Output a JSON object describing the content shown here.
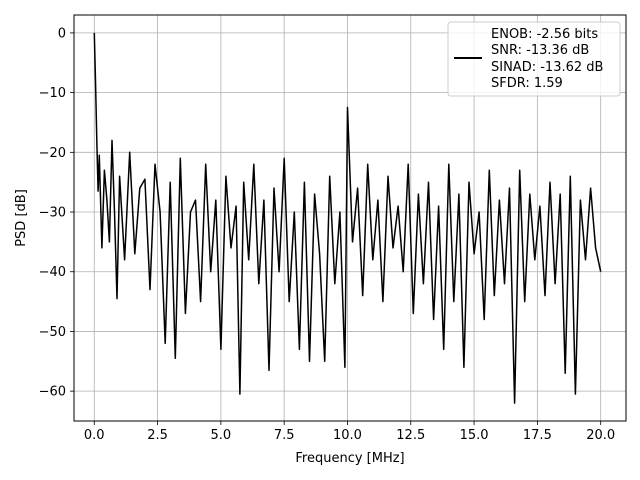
{
  "chart_data": {
    "type": "line",
    "title": "",
    "xlabel": "Frequency [MHz]",
    "ylabel": "PSD [dB]",
    "xlim": [
      -0.8,
      21.0
    ],
    "ylim": [
      -65,
      3
    ],
    "xticks": [
      0.0,
      2.5,
      5.0,
      7.5,
      10.0,
      12.5,
      15.0,
      17.5,
      20.0
    ],
    "xtick_labels": [
      "0.0",
      "2.5",
      "5.0",
      "7.5",
      "10.0",
      "12.5",
      "15.0",
      "17.5",
      "20.0"
    ],
    "yticks": [
      0,
      -10,
      -20,
      -30,
      -40,
      -50,
      -60
    ],
    "ytick_labels": [
      "0",
      "−10",
      "−20",
      "−30",
      "−40",
      "−50",
      "−60"
    ],
    "grid": true,
    "legend_position": "top-right",
    "legend": [
      "ENOB: -2.56 bits",
      "SNR: -13.36 dB",
      "SINAD: -13.62 dB",
      "SFDR: 1.59"
    ],
    "series": [
      {
        "color": "#000000",
        "x": [
          0.0,
          0.05,
          0.1,
          0.15,
          0.2,
          0.3,
          0.4,
          0.5,
          0.6,
          0.7,
          0.8,
          0.9,
          1.0,
          1.2,
          1.4,
          1.6,
          1.8,
          2.0,
          2.2,
          2.4,
          2.6,
          2.8,
          3.0,
          3.2,
          3.4,
          3.6,
          3.8,
          4.0,
          4.2,
          4.4,
          4.6,
          4.8,
          5.0,
          5.2,
          5.4,
          5.6,
          5.75,
          5.9,
          6.1,
          6.3,
          6.5,
          6.7,
          6.9,
          7.1,
          7.3,
          7.5,
          7.7,
          7.9,
          8.1,
          8.3,
          8.5,
          8.7,
          8.9,
          9.1,
          9.3,
          9.5,
          9.7,
          9.9,
          10.0,
          10.2,
          10.4,
          10.6,
          10.8,
          11.0,
          11.2,
          11.4,
          11.6,
          11.8,
          12.0,
          12.2,
          12.4,
          12.6,
          12.8,
          13.0,
          13.2,
          13.4,
          13.6,
          13.8,
          14.0,
          14.2,
          14.4,
          14.6,
          14.8,
          15.0,
          15.2,
          15.4,
          15.6,
          15.8,
          16.0,
          16.2,
          16.4,
          16.6,
          16.8,
          17.0,
          17.2,
          17.4,
          17.6,
          17.8,
          18.0,
          18.2,
          18.4,
          18.6,
          18.8,
          19.0,
          19.2,
          19.4,
          19.6,
          19.8,
          20.0
        ],
        "y": [
          0.0,
          -8.0,
          -18.0,
          -26.5,
          -20.5,
          -36.0,
          -23.0,
          -28.0,
          -35.0,
          -18.0,
          -30.0,
          -44.5,
          -24.0,
          -38.0,
          -20.0,
          -37.0,
          -26.0,
          -24.5,
          -43.0,
          -22.0,
          -30.0,
          -52.0,
          -25.0,
          -54.5,
          -21.0,
          -47.0,
          -30.0,
          -28.0,
          -45.0,
          -22.0,
          -40.0,
          -28.0,
          -53.0,
          -24.0,
          -36.0,
          -29.0,
          -60.5,
          -25.0,
          -38.0,
          -22.0,
          -42.0,
          -28.0,
          -56.5,
          -26.0,
          -40.0,
          -21.0,
          -45.0,
          -30.0,
          -53.0,
          -25.0,
          -55.0,
          -27.0,
          -37.0,
          -55.0,
          -24.0,
          -42.0,
          -30.0,
          -56.0,
          -12.5,
          -35.0,
          -26.0,
          -44.0,
          -22.0,
          -38.0,
          -28.0,
          -45.0,
          -24.0,
          -36.0,
          -29.0,
          -40.0,
          -22.0,
          -47.0,
          -27.0,
          -42.0,
          -25.0,
          -48.0,
          -29.0,
          -53.0,
          -22.0,
          -45.0,
          -27.0,
          -56.0,
          -25.0,
          -37.0,
          -30.0,
          -48.0,
          -23.0,
          -44.0,
          -28.0,
          -42.0,
          -26.0,
          -62.0,
          -23.0,
          -45.0,
          -27.0,
          -38.0,
          -29.0,
          -44.0,
          -25.0,
          -42.0,
          -27.0,
          -57.0,
          -24.0,
          -60.5,
          -28.0,
          -38.0,
          -26.0,
          -36.0,
          -40.0
        ]
      }
    ]
  }
}
